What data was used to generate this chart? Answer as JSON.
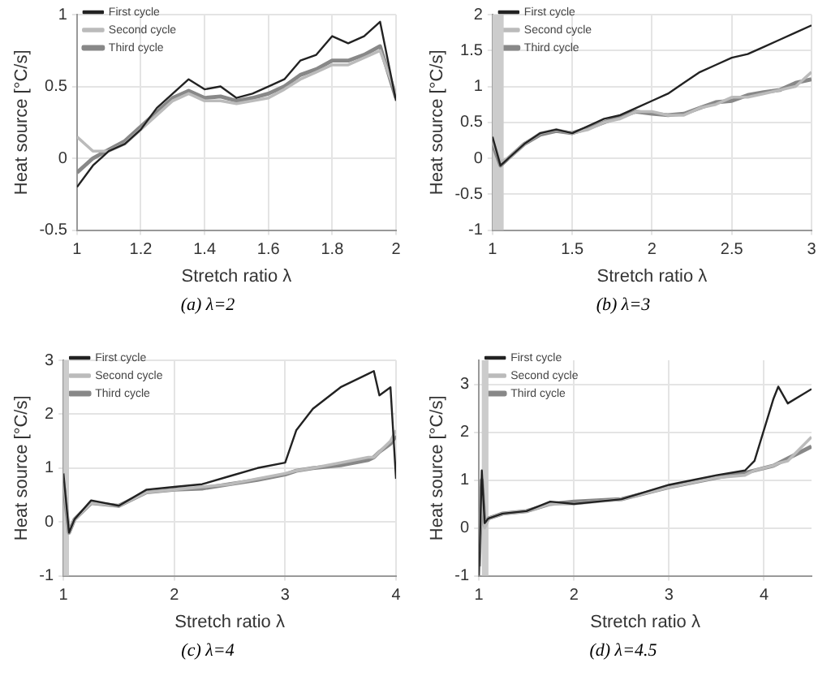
{
  "chart_data": [
    {
      "type": "line",
      "xlabel": "Stretch ratio λ",
      "ylabel": "Heat source [°C/s]",
      "xlim": [
        1,
        2
      ],
      "xticks": [
        1,
        1.2,
        1.4,
        1.6,
        1.8,
        2
      ],
      "ylim": [
        -0.5,
        1
      ],
      "yticks": [
        -0.5,
        0,
        0.5,
        1
      ],
      "grid": true,
      "legend": "top left",
      "annotations": [
        "(a) λ=2"
      ],
      "x": [
        1,
        1.05,
        1.1,
        1.15,
        1.2,
        1.25,
        1.3,
        1.35,
        1.4,
        1.45,
        1.5,
        1.55,
        1.6,
        1.65,
        1.7,
        1.75,
        1.8,
        1.85,
        1.9,
        1.95,
        2
      ],
      "series": [
        {
          "name": "First cycle",
          "color": "#222222",
          "values": [
            -0.2,
            -0.05,
            0.05,
            0.1,
            0.2,
            0.35,
            0.45,
            0.55,
            0.48,
            0.5,
            0.42,
            0.45,
            0.5,
            0.55,
            0.68,
            0.72,
            0.85,
            0.8,
            0.85,
            0.95,
            0.4
          ]
        },
        {
          "name": "Second cycle",
          "color": "#bbbbbb",
          "values": [
            0.15,
            0.05,
            0.05,
            0.1,
            0.2,
            0.3,
            0.4,
            0.45,
            0.4,
            0.4,
            0.38,
            0.4,
            0.42,
            0.48,
            0.55,
            0.6,
            0.65,
            0.65,
            0.7,
            0.75,
            0.45
          ]
        },
        {
          "name": "Third cycle",
          "color": "#888888",
          "values": [
            -0.1,
            0.0,
            0.06,
            0.12,
            0.22,
            0.32,
            0.42,
            0.47,
            0.42,
            0.43,
            0.4,
            0.42,
            0.45,
            0.5,
            0.58,
            0.62,
            0.68,
            0.68,
            0.72,
            0.78,
            0.42
          ]
        }
      ]
    },
    {
      "type": "line",
      "xlabel": "Stretch ratio λ",
      "ylabel": "Heat source [°C/s]",
      "xlim": [
        1,
        3
      ],
      "xticks": [
        1,
        1.5,
        2,
        2.5,
        3
      ],
      "ylim": [
        -1,
        2
      ],
      "yticks": [
        -1,
        -0.5,
        0,
        0.5,
        1,
        1.5,
        2
      ],
      "grid": true,
      "legend": "top left",
      "annotations": [
        "(b) λ=3"
      ],
      "bands": [
        {
          "axis": "x",
          "from": 1,
          "to": 1.07,
          "color": "#cccccc"
        }
      ],
      "x": [
        1,
        1.05,
        1.1,
        1.2,
        1.3,
        1.4,
        1.5,
        1.6,
        1.7,
        1.8,
        1.9,
        2,
        2.1,
        2.2,
        2.3,
        2.4,
        2.5,
        2.6,
        2.7,
        2.8,
        2.9,
        3
      ],
      "series": [
        {
          "name": "First cycle",
          "color": "#222222",
          "values": [
            0.3,
            -0.1,
            0.0,
            0.2,
            0.35,
            0.4,
            0.35,
            0.45,
            0.55,
            0.6,
            0.7,
            0.8,
            0.9,
            1.05,
            1.2,
            1.3,
            1.4,
            1.45,
            1.55,
            1.65,
            1.75,
            1.85
          ]
        },
        {
          "name": "Second cycle",
          "color": "#bbbbbb",
          "values": [
            0.25,
            -0.05,
            0.0,
            0.2,
            0.35,
            0.4,
            0.35,
            0.4,
            0.5,
            0.55,
            0.65,
            0.65,
            0.6,
            0.6,
            0.7,
            0.75,
            0.85,
            0.85,
            0.9,
            0.95,
            1.0,
            1.2
          ]
        },
        {
          "name": "Third cycle",
          "color": "#888888",
          "values": [
            0.2,
            -0.1,
            0.0,
            0.2,
            0.33,
            0.38,
            0.35,
            0.42,
            0.5,
            0.58,
            0.65,
            0.62,
            0.6,
            0.62,
            0.7,
            0.78,
            0.8,
            0.88,
            0.92,
            0.95,
            1.05,
            1.1
          ]
        }
      ]
    },
    {
      "type": "line",
      "xlabel": "Stretch ratio λ",
      "ylabel": "Heat source [°C/s]",
      "xlim": [
        1,
        4
      ],
      "xticks": [
        1,
        2,
        3,
        4
      ],
      "ylim": [
        -1,
        3
      ],
      "yticks": [
        -1,
        0,
        1,
        2,
        3
      ],
      "grid": true,
      "legend": "top left",
      "annotations": [
        "(c) λ=4"
      ],
      "bands": [
        {
          "axis": "x",
          "from": 1,
          "to": 1.05,
          "color": "#cccccc"
        }
      ],
      "x": [
        1,
        1.05,
        1.1,
        1.25,
        1.5,
        1.75,
        2,
        2.25,
        2.5,
        2.75,
        3,
        3.1,
        3.25,
        3.5,
        3.75,
        3.8,
        3.85,
        3.95,
        4
      ],
      "series": [
        {
          "name": "First cycle",
          "color": "#222222",
          "values": [
            0.9,
            -0.2,
            0.05,
            0.4,
            0.3,
            0.6,
            0.65,
            0.7,
            0.85,
            1.0,
            1.1,
            1.7,
            2.1,
            2.5,
            2.75,
            2.8,
            2.35,
            2.5,
            0.8
          ]
        },
        {
          "name": "Second cycle",
          "color": "#bbbbbb",
          "values": [
            0.8,
            -0.2,
            0.05,
            0.35,
            0.3,
            0.55,
            0.6,
            0.65,
            0.7,
            0.8,
            0.9,
            0.95,
            1.0,
            1.1,
            1.2,
            1.2,
            1.3,
            1.5,
            1.7
          ]
        },
        {
          "name": "Third cycle",
          "color": "#888888",
          "values": [
            0.7,
            -0.2,
            0.05,
            0.35,
            0.3,
            0.55,
            0.6,
            0.62,
            0.7,
            0.78,
            0.88,
            0.95,
            1.0,
            1.05,
            1.15,
            1.2,
            1.3,
            1.45,
            1.6
          ]
        }
      ]
    },
    {
      "type": "line",
      "xlabel": "Stretch ratio λ",
      "ylabel": "Heat source [°C/s]",
      "xlim": [
        1,
        4.5
      ],
      "xticks": [
        1,
        2,
        3,
        4
      ],
      "ylim": [
        -1,
        3.5
      ],
      "yticks": [
        -1,
        0,
        1,
        2,
        3
      ],
      "grid": true,
      "legend": "top left",
      "annotations": [
        "(d) λ=4.5"
      ],
      "bands": [
        {
          "axis": "x",
          "from": 1.03,
          "to": 1.1,
          "color": "#cccccc"
        }
      ],
      "x": [
        1,
        1.03,
        1.06,
        1.1,
        1.25,
        1.5,
        1.75,
        2,
        2.5,
        3,
        3.5,
        3.8,
        3.9,
        4.1,
        4.15,
        4.25,
        4.5
      ],
      "series": [
        {
          "name": "First cycle",
          "color": "#222222",
          "values": [
            -1,
            1.2,
            0.1,
            0.2,
            0.3,
            0.35,
            0.55,
            0.5,
            0.6,
            0.9,
            1.1,
            1.2,
            1.4,
            2.7,
            2.95,
            2.6,
            2.9
          ]
        },
        {
          "name": "Second cycle",
          "color": "#bbbbbb",
          "values": [
            -0.5,
            0.8,
            0,
            0.2,
            0.3,
            0.35,
            0.5,
            0.5,
            0.6,
            0.85,
            1.05,
            1.1,
            1.2,
            1.3,
            1.35,
            1.4,
            1.9
          ]
        },
        {
          "name": "Third cycle",
          "color": "#888888",
          "values": [
            -0.8,
            1.0,
            0.05,
            0.2,
            0.3,
            0.35,
            0.5,
            0.55,
            0.6,
            0.85,
            1.05,
            1.15,
            1.2,
            1.3,
            1.35,
            1.45,
            1.7
          ]
        }
      ]
    }
  ]
}
